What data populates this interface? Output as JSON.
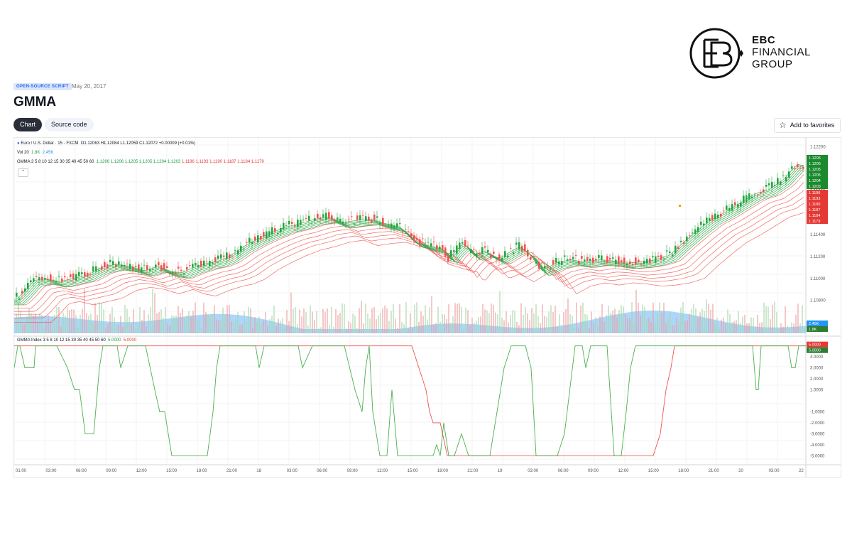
{
  "brand": {
    "line1": "EBC",
    "line2": "FINANCIAL",
    "line3": "GROUP"
  },
  "header": {
    "badge": "OPEN-SOURCE SCRIPT",
    "date": "May 20, 2017",
    "title": "GMMA"
  },
  "tabs": [
    {
      "label": "Chart",
      "active": true
    },
    {
      "label": "Source code",
      "active": false
    }
  ],
  "favorites_label": "Add to favorites",
  "legend": {
    "symbol": "Euro / U.S. Dollar · 15 · FXCM",
    "ohlc": "O1.12063 H1.12084 L1.12059 C1.12072 +0.00009 (+0.01%)",
    "vol_label": "Vol 20",
    "vol_values": [
      "1.8K",
      "2.45K"
    ],
    "gmma_label": "GMMA 3 5 8 10 12 15 30 35 40 45 50 60",
    "gmma_short": [
      "1.1206",
      "1.1206",
      "1.1205",
      "1.1205",
      "1.1204",
      "1.1203"
    ],
    "gmma_long": [
      "1.1196",
      "1.1193",
      "1.1190",
      "1.1187",
      "1.1184",
      "1.1179"
    ],
    "index_label": "GMMA Index 3 5 8 10 12 15 30 35 40 45 50 60",
    "index_values": [
      "5.0000",
      "5.0000"
    ]
  },
  "price_axis": {
    "ticks": [
      "1.12200",
      "1.11800",
      "1.11600",
      "1.11400",
      "1.11200",
      "1.11000",
      "1.10800",
      "1.10600"
    ],
    "current": "1.12072",
    "tags_green": [
      "1.1206",
      "1.1206",
      "1.1205",
      "1.1205",
      "1.1204",
      "1.1203"
    ],
    "tags_red": [
      "1.1196",
      "1.1193",
      "1.1190",
      "1.1187",
      "1.1184",
      "1.1179"
    ],
    "vol_tags": [
      "2.45K",
      "1.8K"
    ]
  },
  "index_axis": {
    "ticks": [
      "4.0000",
      "3.0000",
      "2.0000",
      "1.0000",
      "-1.0000",
      "-2.0000",
      "-3.0000",
      "-4.0000",
      "-5.0000"
    ],
    "tags": [
      "5.0000",
      "5.0000"
    ]
  },
  "time_axis": [
    "01:00",
    "03:00",
    "06:00",
    "09:00",
    "12:00",
    "15:00",
    "18:00",
    "21:00",
    "18",
    "03:00",
    "06:00",
    "09:00",
    "12:00",
    "15:00",
    "18:00",
    "21:00",
    "19",
    "03:00",
    "06:00",
    "09:00",
    "12:00",
    "15:00",
    "18:00",
    "21:00",
    "20",
    "03:00",
    "22"
  ],
  "colors": {
    "short": "#26a641",
    "long": "#ef5350",
    "up": "#26a641",
    "down": "#ef5350",
    "volume": "#90caf9",
    "index_green": "#4caf50",
    "index_red": "#ef5350"
  },
  "chart_data": {
    "type": "line",
    "price_path": [
      [
        0,
        1.1082
      ],
      [
        10,
        1.1088
      ],
      [
        25,
        1.1099
      ],
      [
        40,
        1.1101
      ],
      [
        60,
        1.1098
      ],
      [
        80,
        1.1101
      ],
      [
        100,
        1.1104
      ],
      [
        120,
        1.1111
      ],
      [
        140,
        1.1114
      ],
      [
        160,
        1.1112
      ],
      [
        180,
        1.1108
      ],
      [
        200,
        1.1112
      ],
      [
        215,
        1.1108
      ],
      [
        232,
        1.1106
      ],
      [
        250,
        1.1111
      ],
      [
        270,
        1.1115
      ],
      [
        285,
        1.1117
      ],
      [
        300,
        1.1121
      ],
      [
        320,
        1.113
      ],
      [
        340,
        1.1137
      ],
      [
        360,
        1.1143
      ],
      [
        380,
        1.1148
      ],
      [
        400,
        1.1151
      ],
      [
        420,
        1.1155
      ],
      [
        440,
        1.1157
      ],
      [
        460,
        1.1152
      ],
      [
        480,
        1.1154
      ],
      [
        500,
        1.1155
      ],
      [
        520,
        1.1151
      ],
      [
        540,
        1.1148
      ],
      [
        560,
        1.1135
      ],
      [
        580,
        1.1131
      ],
      [
        600,
        1.1128
      ],
      [
        610,
        1.1119
      ],
      [
        620,
        1.1127
      ],
      [
        630,
        1.1133
      ],
      [
        645,
        1.1122
      ],
      [
        660,
        1.1126
      ],
      [
        680,
        1.1119
      ],
      [
        700,
        1.1127
      ],
      [
        710,
        1.113
      ],
      [
        725,
        1.1122
      ],
      [
        740,
        1.1108
      ],
      [
        760,
        1.1115
      ],
      [
        780,
        1.1118
      ],
      [
        800,
        1.1116
      ],
      [
        820,
        1.1118
      ],
      [
        840,
        1.1117
      ],
      [
        860,
        1.1115
      ],
      [
        880,
        1.1116
      ],
      [
        900,
        1.1118
      ],
      [
        920,
        1.1122
      ],
      [
        940,
        1.1134
      ],
      [
        960,
        1.1145
      ],
      [
        980,
        1.1155
      ],
      [
        1000,
        1.1162
      ],
      [
        1020,
        1.117
      ],
      [
        1040,
        1.1178
      ],
      [
        1060,
        1.1182
      ],
      [
        1080,
        1.1191
      ],
      [
        1100,
        1.1205
      ],
      [
        1120,
        1.1203
      ],
      [
        1140,
        1.1207
      ]
    ],
    "index_path": [
      [
        0,
        3
      ],
      [
        5,
        5
      ],
      [
        8,
        5
      ],
      [
        15,
        3
      ],
      [
        28,
        3
      ],
      [
        30,
        5
      ],
      [
        60,
        5
      ],
      [
        75,
        3
      ],
      [
        85,
        1
      ],
      [
        92,
        1
      ],
      [
        100,
        -3
      ],
      [
        112,
        -3
      ],
      [
        120,
        3
      ],
      [
        125,
        5
      ],
      [
        145,
        5
      ],
      [
        150,
        3
      ],
      [
        160,
        5
      ],
      [
        185,
        5
      ],
      [
        198,
        1
      ],
      [
        205,
        -1
      ],
      [
        212,
        -1
      ],
      [
        222,
        -5
      ],
      [
        272,
        -5
      ],
      [
        280,
        -1
      ],
      [
        285,
        3
      ],
      [
        290,
        5
      ],
      [
        330,
        5
      ],
      [
        340,
        5
      ],
      [
        345,
        3
      ],
      [
        352,
        5
      ],
      [
        400,
        5
      ],
      [
        406,
        3
      ],
      [
        420,
        5
      ],
      [
        465,
        5
      ],
      [
        480,
        1
      ],
      [
        490,
        -1
      ],
      [
        495,
        3
      ],
      [
        500,
        5
      ],
      [
        505,
        -1
      ],
      [
        515,
        -5
      ],
      [
        525,
        -5
      ],
      [
        532,
        1
      ],
      [
        540,
        -5
      ],
      [
        590,
        -5
      ],
      [
        595,
        -4
      ],
      [
        600,
        -5
      ],
      [
        605,
        -2
      ],
      [
        612,
        -5
      ],
      [
        620,
        -5
      ],
      [
        630,
        -3
      ],
      [
        640,
        -5
      ],
      [
        670,
        -5
      ],
      [
        680,
        -1
      ],
      [
        690,
        3
      ],
      [
        700,
        5
      ],
      [
        720,
        5
      ],
      [
        728,
        3
      ],
      [
        735,
        -5
      ],
      [
        765,
        -5
      ],
      [
        775,
        -3
      ],
      [
        790,
        5
      ],
      [
        800,
        5
      ],
      [
        805,
        3
      ],
      [
        812,
        5
      ],
      [
        835,
        5
      ],
      [
        845,
        -5
      ],
      [
        855,
        -5
      ],
      [
        862,
        -1
      ],
      [
        868,
        3
      ],
      [
        875,
        5
      ],
      [
        1040,
        5
      ],
      [
        1045,
        1
      ],
      [
        1048,
        1
      ],
      [
        1052,
        5
      ],
      [
        1090,
        5
      ],
      [
        1095,
        3
      ],
      [
        1100,
        3
      ],
      [
        1105,
        5
      ],
      [
        1115,
        5
      ]
    ],
    "index_red_path": [
      [
        0,
        5
      ],
      [
        560,
        5
      ],
      [
        570,
        3
      ],
      [
        580,
        1
      ],
      [
        585,
        -1
      ],
      [
        590,
        -2
      ],
      [
        600,
        -2
      ],
      [
        610,
        -5
      ],
      [
        900,
        -5
      ],
      [
        910,
        -3
      ],
      [
        918,
        1
      ],
      [
        925,
        3
      ],
      [
        930,
        5
      ],
      [
        1115,
        5
      ]
    ],
    "price_range": [
      1.105,
      1.1225
    ],
    "index_range": [
      -5.5,
      5.5
    ]
  }
}
